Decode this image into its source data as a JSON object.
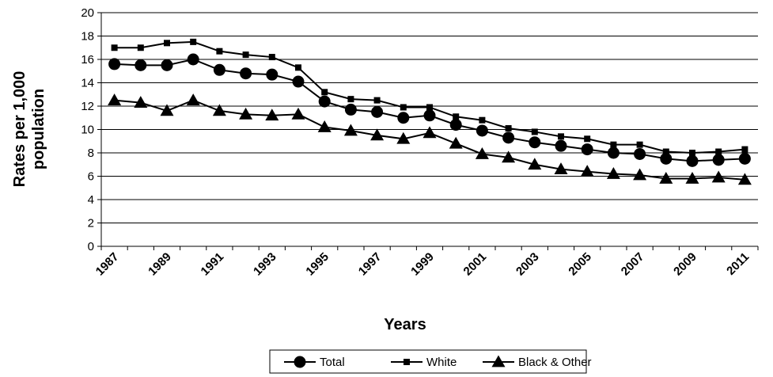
{
  "chart_data": {
    "type": "line",
    "title": "",
    "xlabel": "Years",
    "ylabel": [
      "Rates per 1,000",
      "population"
    ],
    "ylim": [
      0,
      20
    ],
    "yticks": [
      0,
      2,
      4,
      6,
      8,
      10,
      12,
      14,
      16,
      18,
      20
    ],
    "xtick_labels": [
      "1987",
      "1989",
      "1991",
      "1993",
      "1995",
      "1997",
      "1999",
      "2001",
      "2003",
      "2005",
      "2007",
      "2009",
      "2011"
    ],
    "x": [
      1987,
      1988,
      1989,
      1990,
      1991,
      1992,
      1993,
      1994,
      1995,
      1996,
      1997,
      1998,
      1999,
      2000,
      2001,
      2002,
      2003,
      2004,
      2005,
      2006,
      2007,
      2008,
      2009,
      2010,
      2011
    ],
    "grid": "horizontal",
    "legend_position": "bottom",
    "series": [
      {
        "name": "Total",
        "marker": "circle",
        "color": "#000000",
        "values": [
          15.6,
          15.5,
          15.5,
          16.0,
          15.1,
          14.8,
          14.7,
          14.1,
          12.4,
          11.7,
          11.5,
          11.0,
          11.2,
          10.4,
          9.9,
          9.3,
          8.9,
          8.6,
          8.3,
          8.0,
          7.9,
          7.5,
          7.3,
          7.4,
          7.5
        ]
      },
      {
        "name": "White",
        "marker": "square",
        "color": "#000000",
        "values": [
          17.0,
          17.0,
          17.4,
          17.5,
          16.7,
          16.4,
          16.2,
          15.3,
          13.2,
          12.6,
          12.5,
          11.9,
          11.9,
          11.1,
          10.8,
          10.1,
          9.8,
          9.4,
          9.2,
          8.7,
          8.7,
          8.1,
          8.0,
          8.1,
          8.3
        ]
      },
      {
        "name": "Black & Other",
        "marker": "triangle",
        "color": "#000000",
        "values": [
          12.5,
          12.3,
          11.6,
          12.5,
          11.6,
          11.3,
          11.2,
          11.3,
          10.2,
          9.9,
          9.5,
          9.2,
          9.7,
          8.8,
          7.9,
          7.6,
          7.0,
          6.6,
          6.4,
          6.2,
          6.1,
          5.8,
          5.8,
          5.9,
          5.7
        ]
      }
    ]
  }
}
